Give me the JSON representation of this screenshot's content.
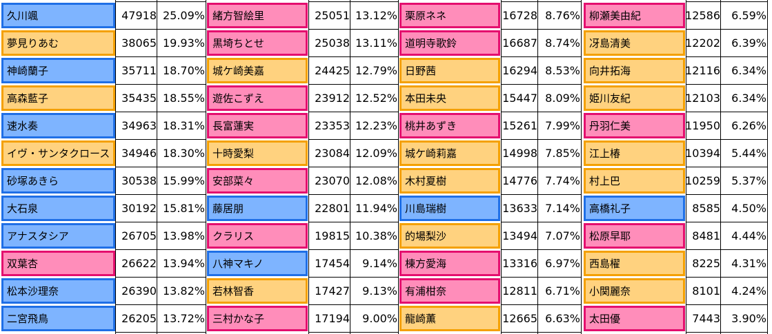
{
  "colors": {
    "blue": {
      "fill": "#7eb4ff",
      "border": "#1f6fe6"
    },
    "orange": {
      "fill": "#ffd27f",
      "border": "#f4a000"
    },
    "pink": {
      "fill": "#ff8dba",
      "border": "#e40e6e"
    }
  },
  "columns": [
    {
      "rows": [
        {
          "name": "久川颯",
          "votes": "47918",
          "percent": "25.09%",
          "color": "blue"
        },
        {
          "name": "夢見りあむ",
          "votes": "38065",
          "percent": "19.93%",
          "color": "orange"
        },
        {
          "name": "神崎蘭子",
          "votes": "35711",
          "percent": "18.70%",
          "color": "blue"
        },
        {
          "name": "高森藍子",
          "votes": "35435",
          "percent": "18.55%",
          "color": "orange"
        },
        {
          "name": "速水奏",
          "votes": "34963",
          "percent": "18.31%",
          "color": "blue"
        },
        {
          "name": "イヴ・サンタクロース",
          "votes": "34946",
          "percent": "18.30%",
          "color": "orange"
        },
        {
          "name": "砂塚あきら",
          "votes": "30538",
          "percent": "15.99%",
          "color": "blue"
        },
        {
          "name": "大石泉",
          "votes": "30192",
          "percent": "15.81%",
          "color": "blue"
        },
        {
          "name": "アナスタシア",
          "votes": "26705",
          "percent": "13.98%",
          "color": "blue"
        },
        {
          "name": "双葉杏",
          "votes": "26622",
          "percent": "13.94%",
          "color": "pink"
        },
        {
          "name": "松本沙理奈",
          "votes": "26390",
          "percent": "13.82%",
          "color": "blue"
        },
        {
          "name": "二宮飛鳥",
          "votes": "26205",
          "percent": "13.72%",
          "color": "blue"
        }
      ]
    },
    {
      "rows": [
        {
          "name": "緒方智絵里",
          "votes": "25051",
          "percent": "13.12%",
          "color": "pink"
        },
        {
          "name": "黒埼ちとせ",
          "votes": "25038",
          "percent": "13.11%",
          "color": "pink"
        },
        {
          "name": "城ケ崎美嘉",
          "votes": "24425",
          "percent": "12.79%",
          "color": "orange"
        },
        {
          "name": "遊佐こずえ",
          "votes": "23912",
          "percent": "12.52%",
          "color": "pink"
        },
        {
          "name": "長富蓮実",
          "votes": "23353",
          "percent": "12.23%",
          "color": "pink"
        },
        {
          "name": "十時愛梨",
          "votes": "23084",
          "percent": "12.09%",
          "color": "orange"
        },
        {
          "name": "安部菜々",
          "votes": "23070",
          "percent": "12.08%",
          "color": "pink"
        },
        {
          "name": "藤居朋",
          "votes": "22801",
          "percent": "11.94%",
          "color": "blue"
        },
        {
          "name": "クラリス",
          "votes": "19815",
          "percent": "10.38%",
          "color": "pink"
        },
        {
          "name": "八神マキノ",
          "votes": "17454",
          "percent": "9.14%",
          "color": "blue"
        },
        {
          "name": "若林智香",
          "votes": "17427",
          "percent": "9.13%",
          "color": "orange"
        },
        {
          "name": "三村かな子",
          "votes": "17194",
          "percent": "9.00%",
          "color": "pink"
        }
      ]
    },
    {
      "rows": [
        {
          "name": "栗原ネネ",
          "votes": "16728",
          "percent": "8.76%",
          "color": "pink"
        },
        {
          "name": "道明寺歌鈴",
          "votes": "16687",
          "percent": "8.74%",
          "color": "pink"
        },
        {
          "name": "日野茜",
          "votes": "16294",
          "percent": "8.53%",
          "color": "orange"
        },
        {
          "name": "本田未央",
          "votes": "15447",
          "percent": "8.09%",
          "color": "orange"
        },
        {
          "name": "桃井あずき",
          "votes": "15261",
          "percent": "7.99%",
          "color": "pink"
        },
        {
          "name": "城ケ崎莉嘉",
          "votes": "14998",
          "percent": "7.85%",
          "color": "orange"
        },
        {
          "name": "木村夏樹",
          "votes": "14776",
          "percent": "7.74%",
          "color": "orange"
        },
        {
          "name": "川島瑞樹",
          "votes": "13633",
          "percent": "7.14%",
          "color": "blue"
        },
        {
          "name": "的場梨沙",
          "votes": "13494",
          "percent": "7.07%",
          "color": "orange"
        },
        {
          "name": "棟方愛海",
          "votes": "13316",
          "percent": "6.97%",
          "color": "pink"
        },
        {
          "name": "有浦柑奈",
          "votes": "12811",
          "percent": "6.71%",
          "color": "pink"
        },
        {
          "name": "龍崎薫",
          "votes": "12665",
          "percent": "6.63%",
          "color": "orange"
        }
      ]
    },
    {
      "rows": [
        {
          "name": "柳瀬美由紀",
          "votes": "12586",
          "percent": "6.59%",
          "color": "pink"
        },
        {
          "name": "冴島清美",
          "votes": "12202",
          "percent": "6.39%",
          "color": "orange"
        },
        {
          "name": "向井拓海",
          "votes": "12116",
          "percent": "6.34%",
          "color": "orange"
        },
        {
          "name": "姫川友紀",
          "votes": "12103",
          "percent": "6.34%",
          "color": "orange"
        },
        {
          "name": "丹羽仁美",
          "votes": "11950",
          "percent": "6.26%",
          "color": "pink"
        },
        {
          "name": "江上椿",
          "votes": "10394",
          "percent": "5.44%",
          "color": "orange"
        },
        {
          "name": "村上巴",
          "votes": "10259",
          "percent": "5.37%",
          "color": "orange"
        },
        {
          "name": "高橋礼子",
          "votes": "8585",
          "percent": "4.50%",
          "color": "blue"
        },
        {
          "name": "松原早耶",
          "votes": "8481",
          "percent": "4.44%",
          "color": "pink"
        },
        {
          "name": "西島櫂",
          "votes": "8225",
          "percent": "4.31%",
          "color": "orange"
        },
        {
          "name": "小関麗奈",
          "votes": "8101",
          "percent": "4.24%",
          "color": "orange"
        },
        {
          "name": "太田優",
          "votes": "7443",
          "percent": "3.90%",
          "color": "pink"
        }
      ]
    }
  ]
}
